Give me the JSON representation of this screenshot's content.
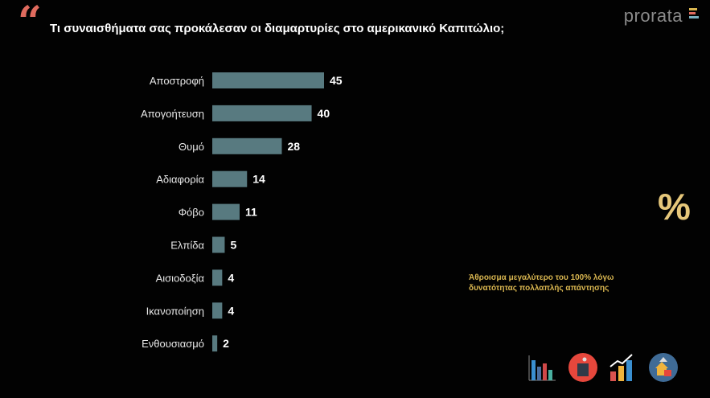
{
  "header": {
    "title": "Τι συναισθήματα σας προκάλεσαν οι διαμαρτυρίες στο αμερικανικό Καπιτώλιο;",
    "logo": "prorata"
  },
  "note": "Άθροισμα μεγαλύτερο του 100% λόγω δυνατότητας πολλαπλής απάντησης",
  "percent_symbol": "%",
  "colors": {
    "bar": "#587a80",
    "quote": "#e06b5e",
    "note": "#d9b650",
    "background": "#020202"
  },
  "icons": [
    "bar-chart-icon",
    "podium-icon",
    "growth-chart-icon",
    "houses-icon"
  ],
  "chart_data": {
    "type": "bar",
    "orientation": "horizontal",
    "categories": [
      "Αποστροφή",
      "Απογοήτευση",
      "Θυμό",
      "Αδιαφορία",
      "Φόβο",
      "Ελπίδα",
      "Αισιοδοξία",
      "Ικανοποίηση",
      "Ενθουσιασμό"
    ],
    "values": [
      45,
      40,
      28,
      14,
      11,
      5,
      4,
      4,
      2
    ],
    "xlim": [
      0,
      45
    ],
    "grid": false,
    "data_labels": true
  }
}
